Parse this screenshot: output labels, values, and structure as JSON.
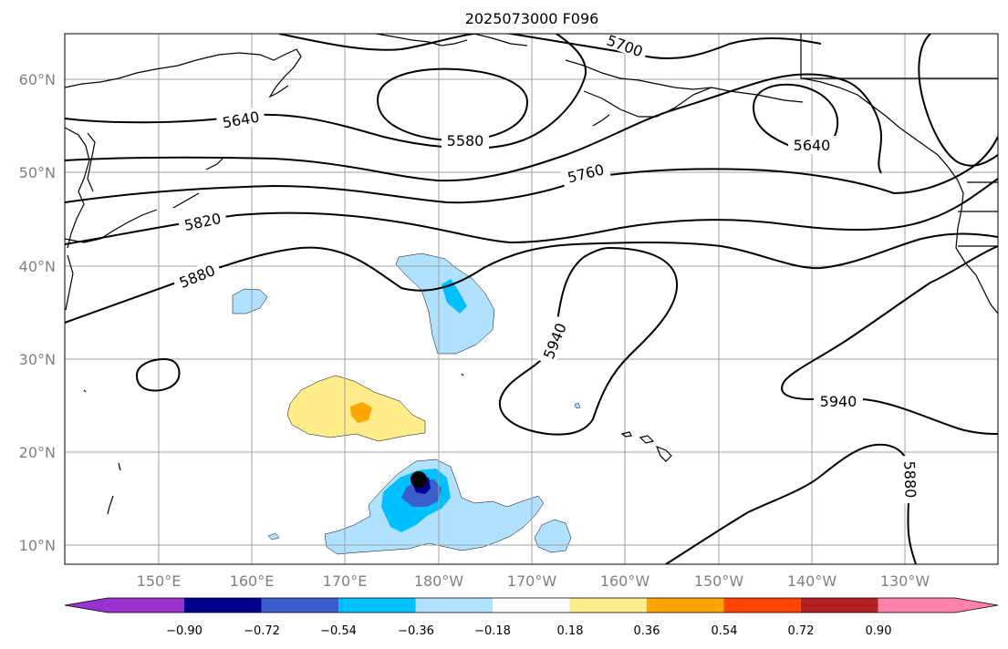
{
  "title": "2025073000 F096",
  "lat_labels": [
    "60°N",
    "50°N",
    "40°N",
    "30°N",
    "20°N",
    "10°N"
  ],
  "lon_labels": [
    "150°E",
    "160°E",
    "170°E",
    "180°W",
    "170°W",
    "160°W",
    "150°W",
    "140°W",
    "130°W"
  ],
  "contour_labels": [
    "5700",
    "5640",
    "5580",
    "5640",
    "5760",
    "5820",
    "5880",
    "5940",
    "5940",
    "5880"
  ],
  "colorbar": {
    "colors": [
      "#9a32cd",
      "#00008b",
      "#3a5fcd",
      "#00bfff",
      "#b0e2ff",
      "#ffffff",
      "#ffec8b",
      "#ffa500",
      "#ff4500",
      "#b22222",
      "#ff82ab"
    ],
    "tick_labels": [
      "−0.90",
      "−0.72",
      "−0.54",
      "−0.36",
      "−0.18",
      "0.18",
      "0.36",
      "0.54",
      "0.72",
      "0.90"
    ]
  }
}
